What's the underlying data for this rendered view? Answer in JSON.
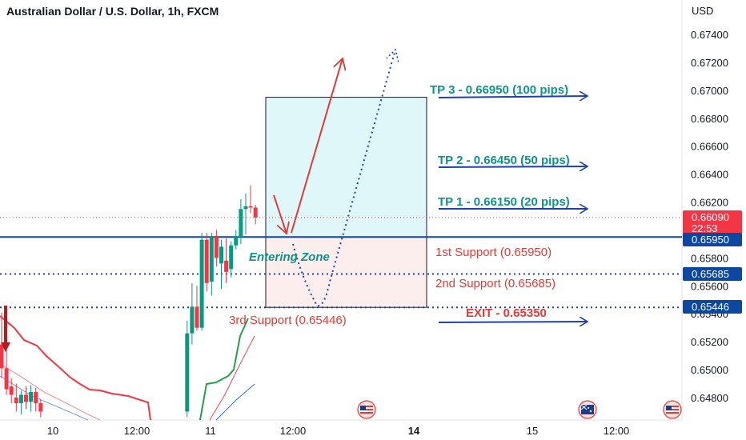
{
  "title": "Australian Dollar / U.S. Dollar, 1h, FXCM",
  "currency": "USD",
  "colors": {
    "up": "#089981",
    "down": "#f23645",
    "annotation_blue": "#1e40af",
    "annotation_teal": "#0d9488",
    "annotation_red": "#e53935",
    "price_badge_blue": "#0d47a1",
    "price_badge_red": "#f23645",
    "tp_zone_fill": "#e0f7fa",
    "sl_zone_fill": "#fdeeee"
  },
  "chart_data": {
    "type": "candlestick",
    "ylim": [
      0.6465,
      0.6755
    ],
    "y_ticks": [
      "0.67400",
      "0.67200",
      "0.67000",
      "0.66800",
      "0.66600",
      "0.66400",
      "0.66200",
      "0.65800",
      "0.65600",
      "0.65400",
      "0.65200",
      "0.65000",
      "0.64800"
    ],
    "x_ticks": [
      "10",
      "12:00",
      "11",
      "12:00",
      "14",
      "15",
      "12:00"
    ],
    "candles": [
      {
        "t": 0,
        "o": 0.6518,
        "h": 0.6541,
        "l": 0.6494,
        "c": 0.6501
      },
      {
        "t": 1,
        "o": 0.6501,
        "h": 0.6515,
        "l": 0.6482,
        "c": 0.6486
      },
      {
        "t": 2,
        "o": 0.6488,
        "h": 0.6494,
        "l": 0.6476,
        "c": 0.6482
      },
      {
        "t": 3,
        "o": 0.648,
        "h": 0.649,
        "l": 0.647,
        "c": 0.6476
      },
      {
        "t": 4,
        "o": 0.6476,
        "h": 0.6485,
        "l": 0.6468,
        "c": 0.6482
      },
      {
        "t": 5,
        "o": 0.6482,
        "h": 0.6488,
        "l": 0.6472,
        "c": 0.6477
      },
      {
        "t": 6,
        "o": 0.6477,
        "h": 0.6489,
        "l": 0.647,
        "c": 0.6484
      },
      {
        "t": 7,
        "o": 0.6484,
        "h": 0.6487,
        "l": 0.647,
        "c": 0.6476
      },
      {
        "t": 8,
        "o": 0.6476,
        "h": 0.6479,
        "l": 0.6466,
        "c": 0.647
      },
      {
        "t": 38,
        "o": 0.647,
        "h": 0.6535,
        "l": 0.6466,
        "c": 0.6526
      },
      {
        "t": 39,
        "o": 0.6526,
        "h": 0.6562,
        "l": 0.6518,
        "c": 0.6545
      },
      {
        "t": 40,
        "o": 0.6545,
        "h": 0.656,
        "l": 0.6528,
        "c": 0.653
      },
      {
        "t": 41,
        "o": 0.653,
        "h": 0.6598,
        "l": 0.6528,
        "c": 0.6593
      },
      {
        "t": 42,
        "o": 0.6593,
        "h": 0.6598,
        "l": 0.6556,
        "c": 0.6562
      },
      {
        "t": 43,
        "o": 0.6563,
        "h": 0.6598,
        "l": 0.6553,
        "c": 0.6595
      },
      {
        "t": 44,
        "o": 0.6595,
        "h": 0.66,
        "l": 0.6574,
        "c": 0.658
      },
      {
        "t": 45,
        "o": 0.6576,
        "h": 0.6593,
        "l": 0.6558,
        "c": 0.6588
      },
      {
        "t": 46,
        "o": 0.6578,
        "h": 0.6594,
        "l": 0.6562,
        "c": 0.657
      },
      {
        "t": 47,
        "o": 0.6572,
        "h": 0.6592,
        "l": 0.6566,
        "c": 0.6589
      },
      {
        "t": 48,
        "o": 0.6589,
        "h": 0.66,
        "l": 0.6586,
        "c": 0.6595
      },
      {
        "t": 49,
        "o": 0.6595,
        "h": 0.6622,
        "l": 0.659,
        "c": 0.6615
      },
      {
        "t": 50,
        "o": 0.6615,
        "h": 0.6626,
        "l": 0.6597,
        "c": 0.6617
      },
      {
        "t": 51,
        "o": 0.6617,
        "h": 0.6632,
        "l": 0.6612,
        "c": 0.6616
      },
      {
        "t": 52,
        "o": 0.6616,
        "h": 0.6618,
        "l": 0.6604,
        "c": 0.6609
      }
    ],
    "zone": {
      "top": 0.6695,
      "bottom": 0.65446,
      "split": 0.6595
    },
    "levels": [
      {
        "price": 0.6595,
        "style": "solid"
      },
      {
        "price": 0.65685,
        "style": "dotted"
      },
      {
        "price": 0.65446,
        "style": "dotted"
      },
      {
        "price": 0.6609,
        "style": "dotted-red"
      }
    ],
    "annotations": {
      "tp3": "TP 3 - 0.66950 (100 pips)",
      "tp2": "TP 2 - 0.66450 (50 pips)",
      "tp1": "TP 1 - 0.66150 (20 pips)",
      "support1": "1st Support (0.65950)",
      "support2": "2nd Support (0.65685)",
      "support3": "3rd Support (0.65446)",
      "exit": "EXIT - 0.65350",
      "entering_zone": "Entering Zone"
    },
    "price_badges": {
      "current_price": "0.66090",
      "countdown": "22:53",
      "level1": "0.65950",
      "level2": "0.65685",
      "level3": "0.65446"
    }
  }
}
